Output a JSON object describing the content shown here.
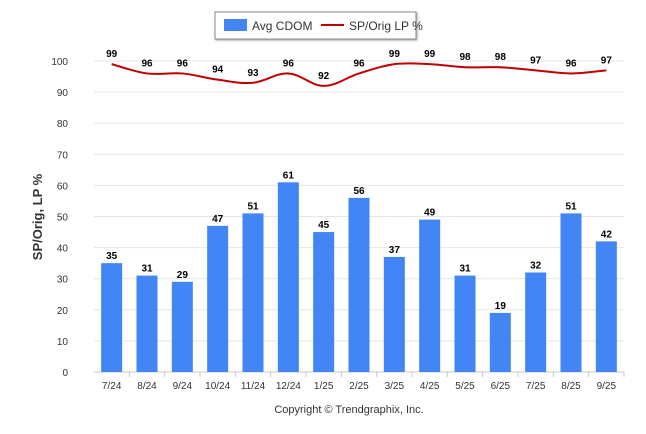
{
  "chart_data": {
    "type": "bar",
    "categories": [
      "7/24",
      "8/24",
      "9/24",
      "10/24",
      "11/24",
      "12/24",
      "1/25",
      "2/25",
      "3/25",
      "4/25",
      "5/25",
      "6/25",
      "7/25",
      "8/25",
      "9/25"
    ],
    "series": [
      {
        "name": "Avg CDOM",
        "type": "bar",
        "color": "#4285F4",
        "values": [
          35,
          31,
          29,
          47,
          51,
          61,
          45,
          56,
          37,
          49,
          31,
          19,
          32,
          51,
          42
        ]
      },
      {
        "name": "SP/Orig LP %",
        "type": "line",
        "color": "#C00000",
        "values": [
          99,
          96,
          96,
          94,
          93,
          96,
          92,
          96,
          99,
          99,
          98,
          98,
          97,
          96,
          97
        ]
      }
    ],
    "ylabel": "SP/Orig, LP %",
    "ylim": [
      0,
      100
    ],
    "yticks": [
      0,
      10,
      20,
      30,
      40,
      50,
      60,
      70,
      80,
      90,
      100
    ],
    "grid": true,
    "legend_position": "top-center"
  },
  "footer": {
    "copyright": "Copyright © Trendgraphix, Inc."
  }
}
